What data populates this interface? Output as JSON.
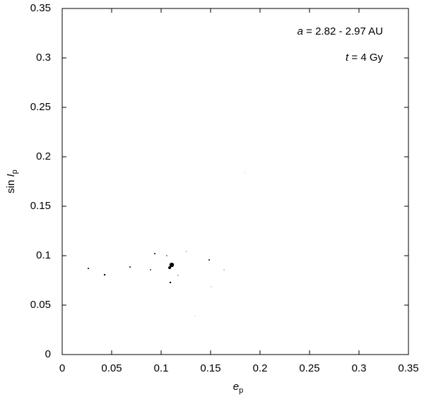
{
  "chart_data": {
    "type": "scatter",
    "x": [
      0.0264,
      0.0429,
      0.0686,
      0.0893,
      0.0936,
      0.1057,
      0.1107,
      0.1086,
      0.1093,
      0.1171,
      0.1257,
      0.1486,
      0.1636,
      0.1507,
      0.1343,
      0.185
    ],
    "values": [
      0.0871,
      0.0807,
      0.0886,
      0.0857,
      0.1021,
      0.1,
      0.0907,
      0.0879,
      0.0729,
      0.08,
      0.1043,
      0.0957,
      0.0857,
      0.0686,
      0.0393,
      0.1836
    ],
    "sizes": [
      1,
      1.2,
      1,
      0.9,
      1,
      0.7,
      3.2,
      2,
      1.2,
      0.6,
      0.5,
      1,
      0.5,
      0.4,
      0.3,
      0.3
    ],
    "color": "#000000",
    "xlim": [
      0,
      0.35
    ],
    "ylim": [
      0,
      0.35
    ],
    "xticks": [
      0,
      0.05,
      0.1,
      0.15,
      0.2,
      0.25,
      0.3,
      0.35
    ],
    "yticks": [
      0,
      0.05,
      0.1,
      0.15,
      0.2,
      0.25,
      0.3,
      0.35
    ],
    "xlabel": {
      "italic": "e",
      "sub": "p"
    },
    "ylabel": {
      "text": "sin ",
      "italic": "I",
      "sub": "p"
    },
    "annotations": [
      {
        "italic": "a",
        "text": " = 2.82 - 2.97 AU"
      },
      {
        "italic": "t",
        "text": " = 4 Gy"
      }
    ]
  }
}
